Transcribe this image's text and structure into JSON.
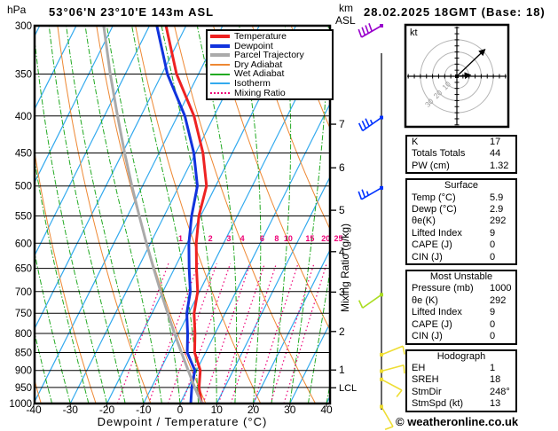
{
  "title": "53°06'N 23°10'E 143m ASL",
  "datetime": "28.02.2025 18GMT (Base: 18)",
  "copyright": "© weatheronline.co.uk",
  "axes": {
    "pressure_label": "hPa",
    "pressure_ticks": [
      300,
      350,
      400,
      450,
      500,
      550,
      600,
      650,
      700,
      750,
      800,
      850,
      900,
      950,
      1000
    ],
    "temp_axis_label": "Dewpoint / Temperature (°C)",
    "temp_ticks": [
      -40,
      -30,
      -20,
      -10,
      0,
      10,
      20,
      30,
      40
    ],
    "km_line1": "km",
    "km_line2": "ASL",
    "km_ticks": [
      1,
      2,
      3,
      4,
      5,
      6,
      7
    ],
    "lcl_label": "LCL",
    "mixing_axis_label": "Mixing Ratio (g/kg)"
  },
  "legend": {
    "items": [
      {
        "label": "Temperature",
        "color": "#ee2222",
        "thickness": 4,
        "style": "solid"
      },
      {
        "label": "Dewpoint",
        "color": "#1133dd",
        "thickness": 4,
        "style": "solid"
      },
      {
        "label": "Parcel Trajectory",
        "color": "#aaaaaa",
        "thickness": 4,
        "style": "solid"
      },
      {
        "label": "Dry Adiabat",
        "color": "#ee8833",
        "thickness": 2,
        "style": "solid"
      },
      {
        "label": "Wet Adiabat",
        "color": "#22aa22",
        "thickness": 2,
        "style": "solid"
      },
      {
        "label": "Isotherm",
        "color": "#33aaee",
        "thickness": 2,
        "style": "solid"
      },
      {
        "label": "Mixing Ratio",
        "color": "#ee0077",
        "thickness": 2,
        "style": "dotted"
      }
    ]
  },
  "colors": {
    "temperature": "#ee2222",
    "dewpoint": "#1133dd",
    "parcel": "#aaaaaa",
    "dry_adiabat": "#ee8833",
    "wet_adiabat": "#22aa22",
    "isotherm": "#33aaee",
    "mixing_ratio": "#ee0077",
    "frame": "#000000",
    "hodo_ring": "#b5b5b5"
  },
  "chart_data": {
    "type": "skewt-log-p",
    "pressure_range": [
      300,
      1000
    ],
    "temp_range": [
      -40,
      40
    ],
    "isotherm_step": 10,
    "dry_adiabat_thetas": [
      -38,
      -23,
      -8,
      7,
      22,
      37,
      52,
      67,
      82,
      97,
      112,
      127,
      142,
      157
    ],
    "wet_adiabat_start_temps": [
      -40,
      -35,
      -30,
      -25,
      -20,
      -15,
      -10,
      -5,
      0,
      5,
      10,
      15,
      20,
      25,
      30,
      35,
      40,
      45,
      50,
      55,
      60
    ],
    "mixing_ratio_values": [
      1,
      2,
      3,
      4,
      6,
      8,
      10,
      15,
      20,
      25
    ],
    "lcl_pressure": 951,
    "sounding": {
      "pressure": [
        1000,
        950,
        900,
        850,
        800,
        750,
        700,
        650,
        600,
        550,
        500,
        450,
        400,
        350,
        300
      ],
      "temperature": [
        5.9,
        3.0,
        1.0,
        -3.0,
        -5.5,
        -8.5,
        -10.5,
        -14.0,
        -17.5,
        -20.5,
        -22.5,
        -28.0,
        -35.5,
        -46.0,
        -55.5
      ],
      "dewpoint": [
        2.9,
        1.0,
        -0.5,
        -5.0,
        -7.5,
        -10.5,
        -12.5,
        -16.0,
        -19.5,
        -22.5,
        -25.0,
        -30.5,
        -38.0,
        -48.5,
        -58.0
      ],
      "parcel": [
        5.9,
        1.8,
        -2.3,
        -6.6,
        -11.1,
        -15.7,
        -20.6,
        -25.7,
        -31.1,
        -36.8,
        -42.9,
        -49.4,
        -56.4,
        -64.1,
        -72.5
      ]
    },
    "wind_barbs": [
      {
        "pressure": 300,
        "dir": 240,
        "speed": 40,
        "color": "#9900cc"
      },
      {
        "pressure": 402,
        "dir": 235,
        "speed": 35,
        "color": "#0033ff"
      },
      {
        "pressure": 503,
        "dir": 240,
        "speed": 25,
        "color": "#0033ff"
      },
      {
        "pressure": 707,
        "dir": 235,
        "speed": 10,
        "color": "#aadd22"
      },
      {
        "pressure": 856,
        "dir": 68,
        "speed": 10,
        "color": "#eedd33"
      },
      {
        "pressure": 902,
        "dir": 75,
        "speed": 10,
        "color": "#eedd33"
      },
      {
        "pressure": 926,
        "dir": 118,
        "speed": 10,
        "color": "#eedd33"
      },
      {
        "pressure": 1010,
        "dir": 150,
        "speed": 10,
        "color": "#eedd33"
      }
    ],
    "hodograph": {
      "unit": "kt",
      "rings": [
        10,
        20,
        30
      ],
      "ring_labels": [
        "10",
        "20",
        "30"
      ],
      "vectors": [
        {
          "u": 23,
          "v": 22
        },
        {
          "u": 11,
          "v": 1
        }
      ]
    }
  },
  "panel": {
    "tables": [
      {
        "rows": [
          {
            "label": "K",
            "value": "17"
          },
          {
            "label": "Totals Totals",
            "value": "44"
          },
          {
            "label": "PW (cm)",
            "value": "1.32"
          }
        ]
      },
      {
        "title": "Surface",
        "rows": [
          {
            "label": "Temp (°C)",
            "value": "5.9"
          },
          {
            "label": "Dewp (°C)",
            "value": "2.9"
          },
          {
            "label": "θe(K)",
            "value": "292"
          },
          {
            "label": "Lifted Index",
            "value": "9"
          },
          {
            "label": "CAPE (J)",
            "value": "0"
          },
          {
            "label": "CIN (J)",
            "value": "0"
          }
        ]
      },
      {
        "title": "Most Unstable",
        "rows": [
          {
            "label": "Pressure (mb)",
            "value": "1000"
          },
          {
            "label": "θe (K)",
            "value": "292"
          },
          {
            "label": "Lifted Index",
            "value": "9"
          },
          {
            "label": "CAPE (J)",
            "value": "0"
          },
          {
            "label": "CIN (J)",
            "value": "0"
          }
        ]
      },
      {
        "title": "Hodograph",
        "rows": [
          {
            "label": "EH",
            "value": "1"
          },
          {
            "label": "SREH",
            "value": "18"
          },
          {
            "label": "StmDir",
            "value": "248°"
          },
          {
            "label": "StmSpd (kt)",
            "value": "13"
          }
        ]
      }
    ]
  }
}
